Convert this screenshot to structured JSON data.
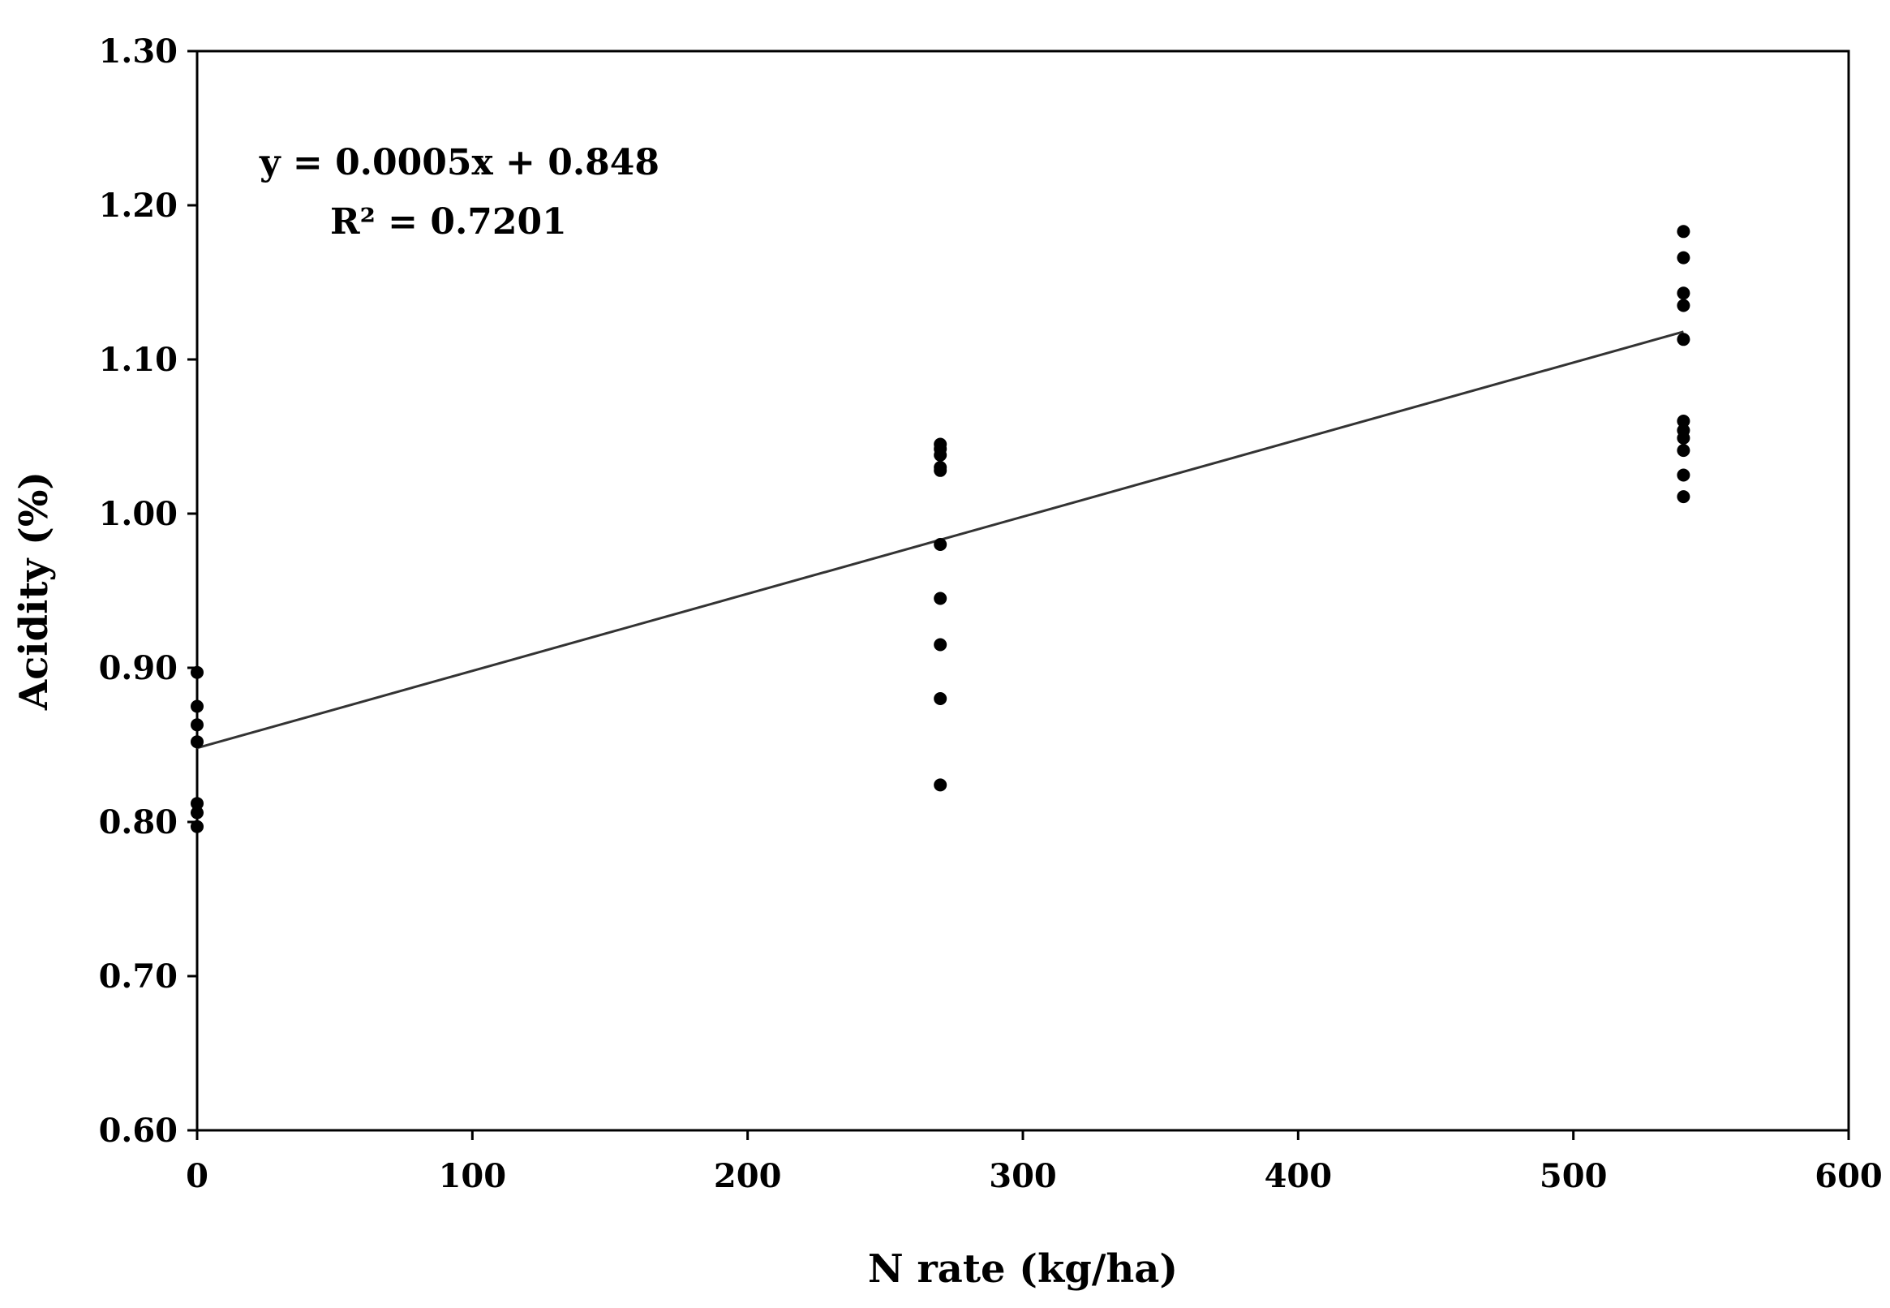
{
  "chart_data": {
    "type": "scatter",
    "title": "",
    "xlabel": "N rate (kg/ha)",
    "ylabel": "Acidity (%)",
    "xlim": [
      0,
      600
    ],
    "ylim": [
      0.6,
      1.3
    ],
    "x_ticks": [
      0,
      100,
      200,
      300,
      400,
      500,
      600
    ],
    "x_tick_labels": [
      "0",
      "100",
      "200",
      "300",
      "400",
      "500",
      "600"
    ],
    "y_ticks": [
      0.6,
      0.7,
      0.8,
      0.9,
      1.0,
      1.1,
      1.2,
      1.3
    ],
    "y_tick_labels": [
      "0.60",
      "0.70",
      "0.80",
      "0.90",
      "1.00",
      "1.10",
      "1.20",
      "1.30"
    ],
    "grid": false,
    "legend": "none",
    "series": [
      {
        "color": "#000000",
        "points": [
          {
            "x": 0,
            "y": 0.897
          },
          {
            "x": 0,
            "y": 0.875
          },
          {
            "x": 0,
            "y": 0.863
          },
          {
            "x": 0,
            "y": 0.852
          },
          {
            "x": 0,
            "y": 0.812
          },
          {
            "x": 0,
            "y": 0.806
          },
          {
            "x": 0,
            "y": 0.797
          },
          {
            "x": 270,
            "y": 1.045
          },
          {
            "x": 270,
            "y": 1.042
          },
          {
            "x": 270,
            "y": 1.038
          },
          {
            "x": 270,
            "y": 1.03
          },
          {
            "x": 270,
            "y": 1.028
          },
          {
            "x": 270,
            "y": 0.98
          },
          {
            "x": 270,
            "y": 0.945
          },
          {
            "x": 270,
            "y": 0.915
          },
          {
            "x": 270,
            "y": 0.88
          },
          {
            "x": 270,
            "y": 0.824
          },
          {
            "x": 540,
            "y": 1.183
          },
          {
            "x": 540,
            "y": 1.166
          },
          {
            "x": 540,
            "y": 1.143
          },
          {
            "x": 540,
            "y": 1.135
          },
          {
            "x": 540,
            "y": 1.113
          },
          {
            "x": 540,
            "y": 1.06
          },
          {
            "x": 540,
            "y": 1.054
          },
          {
            "x": 540,
            "y": 1.049
          },
          {
            "x": 540,
            "y": 1.041
          },
          {
            "x": 540,
            "y": 1.025
          },
          {
            "x": 540,
            "y": 1.011
          }
        ]
      }
    ],
    "trendline": {
      "slope": 0.0005,
      "intercept": 0.848,
      "x_range": [
        0,
        540
      ],
      "color": "#333333"
    },
    "annotations": [
      "y = 0.0005x + 0.848",
      "R² = 0.7201"
    ]
  }
}
